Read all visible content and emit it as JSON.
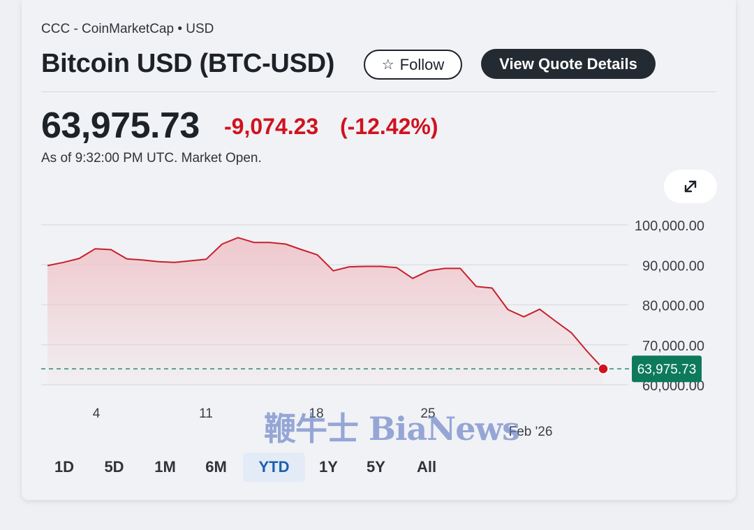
{
  "header": {
    "source": "CCC - CoinMarketCap • USD",
    "title": "Bitcoin USD (BTC-USD)",
    "follow_label": "Follow",
    "quote_details_label": "View Quote Details"
  },
  "quote": {
    "price": "63,975.73",
    "change": "-9,074.23",
    "change_percent": "(-12.42%)",
    "as_of": "As of 9:32:00 PM UTC. Market Open."
  },
  "colors": {
    "negative": "#d0121f",
    "line": "#c8202c",
    "area": "#efc6cb",
    "price_tag": "#0d7a5c",
    "active_range": "#1b5fb0"
  },
  "icons": {
    "follow": "star-outline-icon",
    "expand": "expand-arrows-icon"
  },
  "watermark": "鞭牛士 BiaNews",
  "range_tabs": {
    "items": [
      "1D",
      "5D",
      "1M",
      "6M",
      "YTD",
      "1Y",
      "5Y",
      "All"
    ],
    "active": "YTD"
  },
  "chart_data": {
    "type": "area",
    "title": "",
    "xlabel": "",
    "ylabel": "",
    "x_tick_labels": [
      "4",
      "11",
      "18",
      "25",
      "Feb '26"
    ],
    "y_tick_labels": [
      "100,000.00",
      "90,000.00",
      "80,000.00",
      "70,000.00",
      "60,000.00"
    ],
    "y_ticks": [
      100000,
      90000,
      80000,
      70000,
      60000
    ],
    "ylim": [
      60000,
      100000
    ],
    "grid": true,
    "series": [
      {
        "values": [
          89800,
          90600,
          91600,
          94000,
          93800,
          91500,
          91200,
          90800,
          90600,
          91000,
          91400,
          95200,
          96800,
          95600,
          95600,
          95200,
          93800,
          92500,
          88500,
          89500,
          89600,
          89600,
          89300,
          86600,
          88500,
          89100,
          89100,
          84600,
          84200,
          78800,
          77000,
          78900,
          75900,
          73000,
          68300,
          63975.73
        ]
      }
    ],
    "last_value": 63975.73,
    "last_value_label": "63,975.73"
  }
}
